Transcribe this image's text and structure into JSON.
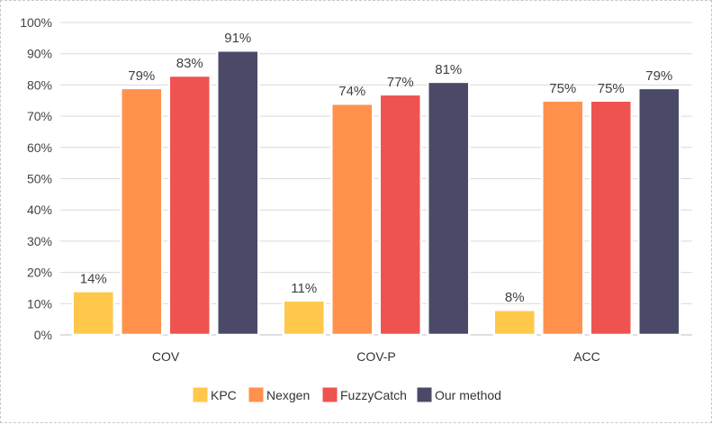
{
  "chart_data": {
    "type": "bar",
    "title": "",
    "xlabel": "",
    "ylabel": "",
    "categories": [
      "COV",
      "COV-P",
      "ACC"
    ],
    "series": [
      {
        "name": "KPC",
        "values": [
          14,
          11,
          8
        ],
        "labels": [
          "14%",
          "11%",
          "8%"
        ],
        "color": "#ffc84a"
      },
      {
        "name": "Nexgen",
        "values": [
          79,
          74,
          75
        ],
        "labels": [
          "79%",
          "74%",
          "75%"
        ],
        "color": "#ff914d"
      },
      {
        "name": "FuzzyCatch",
        "values": [
          83,
          77,
          75
        ],
        "labels": [
          "83%",
          "77%",
          "75%"
        ],
        "color": "#ef5350"
      },
      {
        "name": "Our method",
        "values": [
          91,
          81,
          79
        ],
        "labels": [
          "91%",
          "81%",
          "79%"
        ],
        "color": "#4a4a68"
      }
    ],
    "ylim": [
      0,
      100
    ],
    "yticks": [
      0,
      10,
      20,
      30,
      40,
      50,
      60,
      70,
      80,
      90,
      100
    ],
    "ytick_labels": [
      "0%",
      "10%",
      "20%",
      "30%",
      "40%",
      "50%",
      "60%",
      "70%",
      "80%",
      "90%",
      "100%"
    ],
    "grid": true,
    "legend_position": "bottom"
  }
}
